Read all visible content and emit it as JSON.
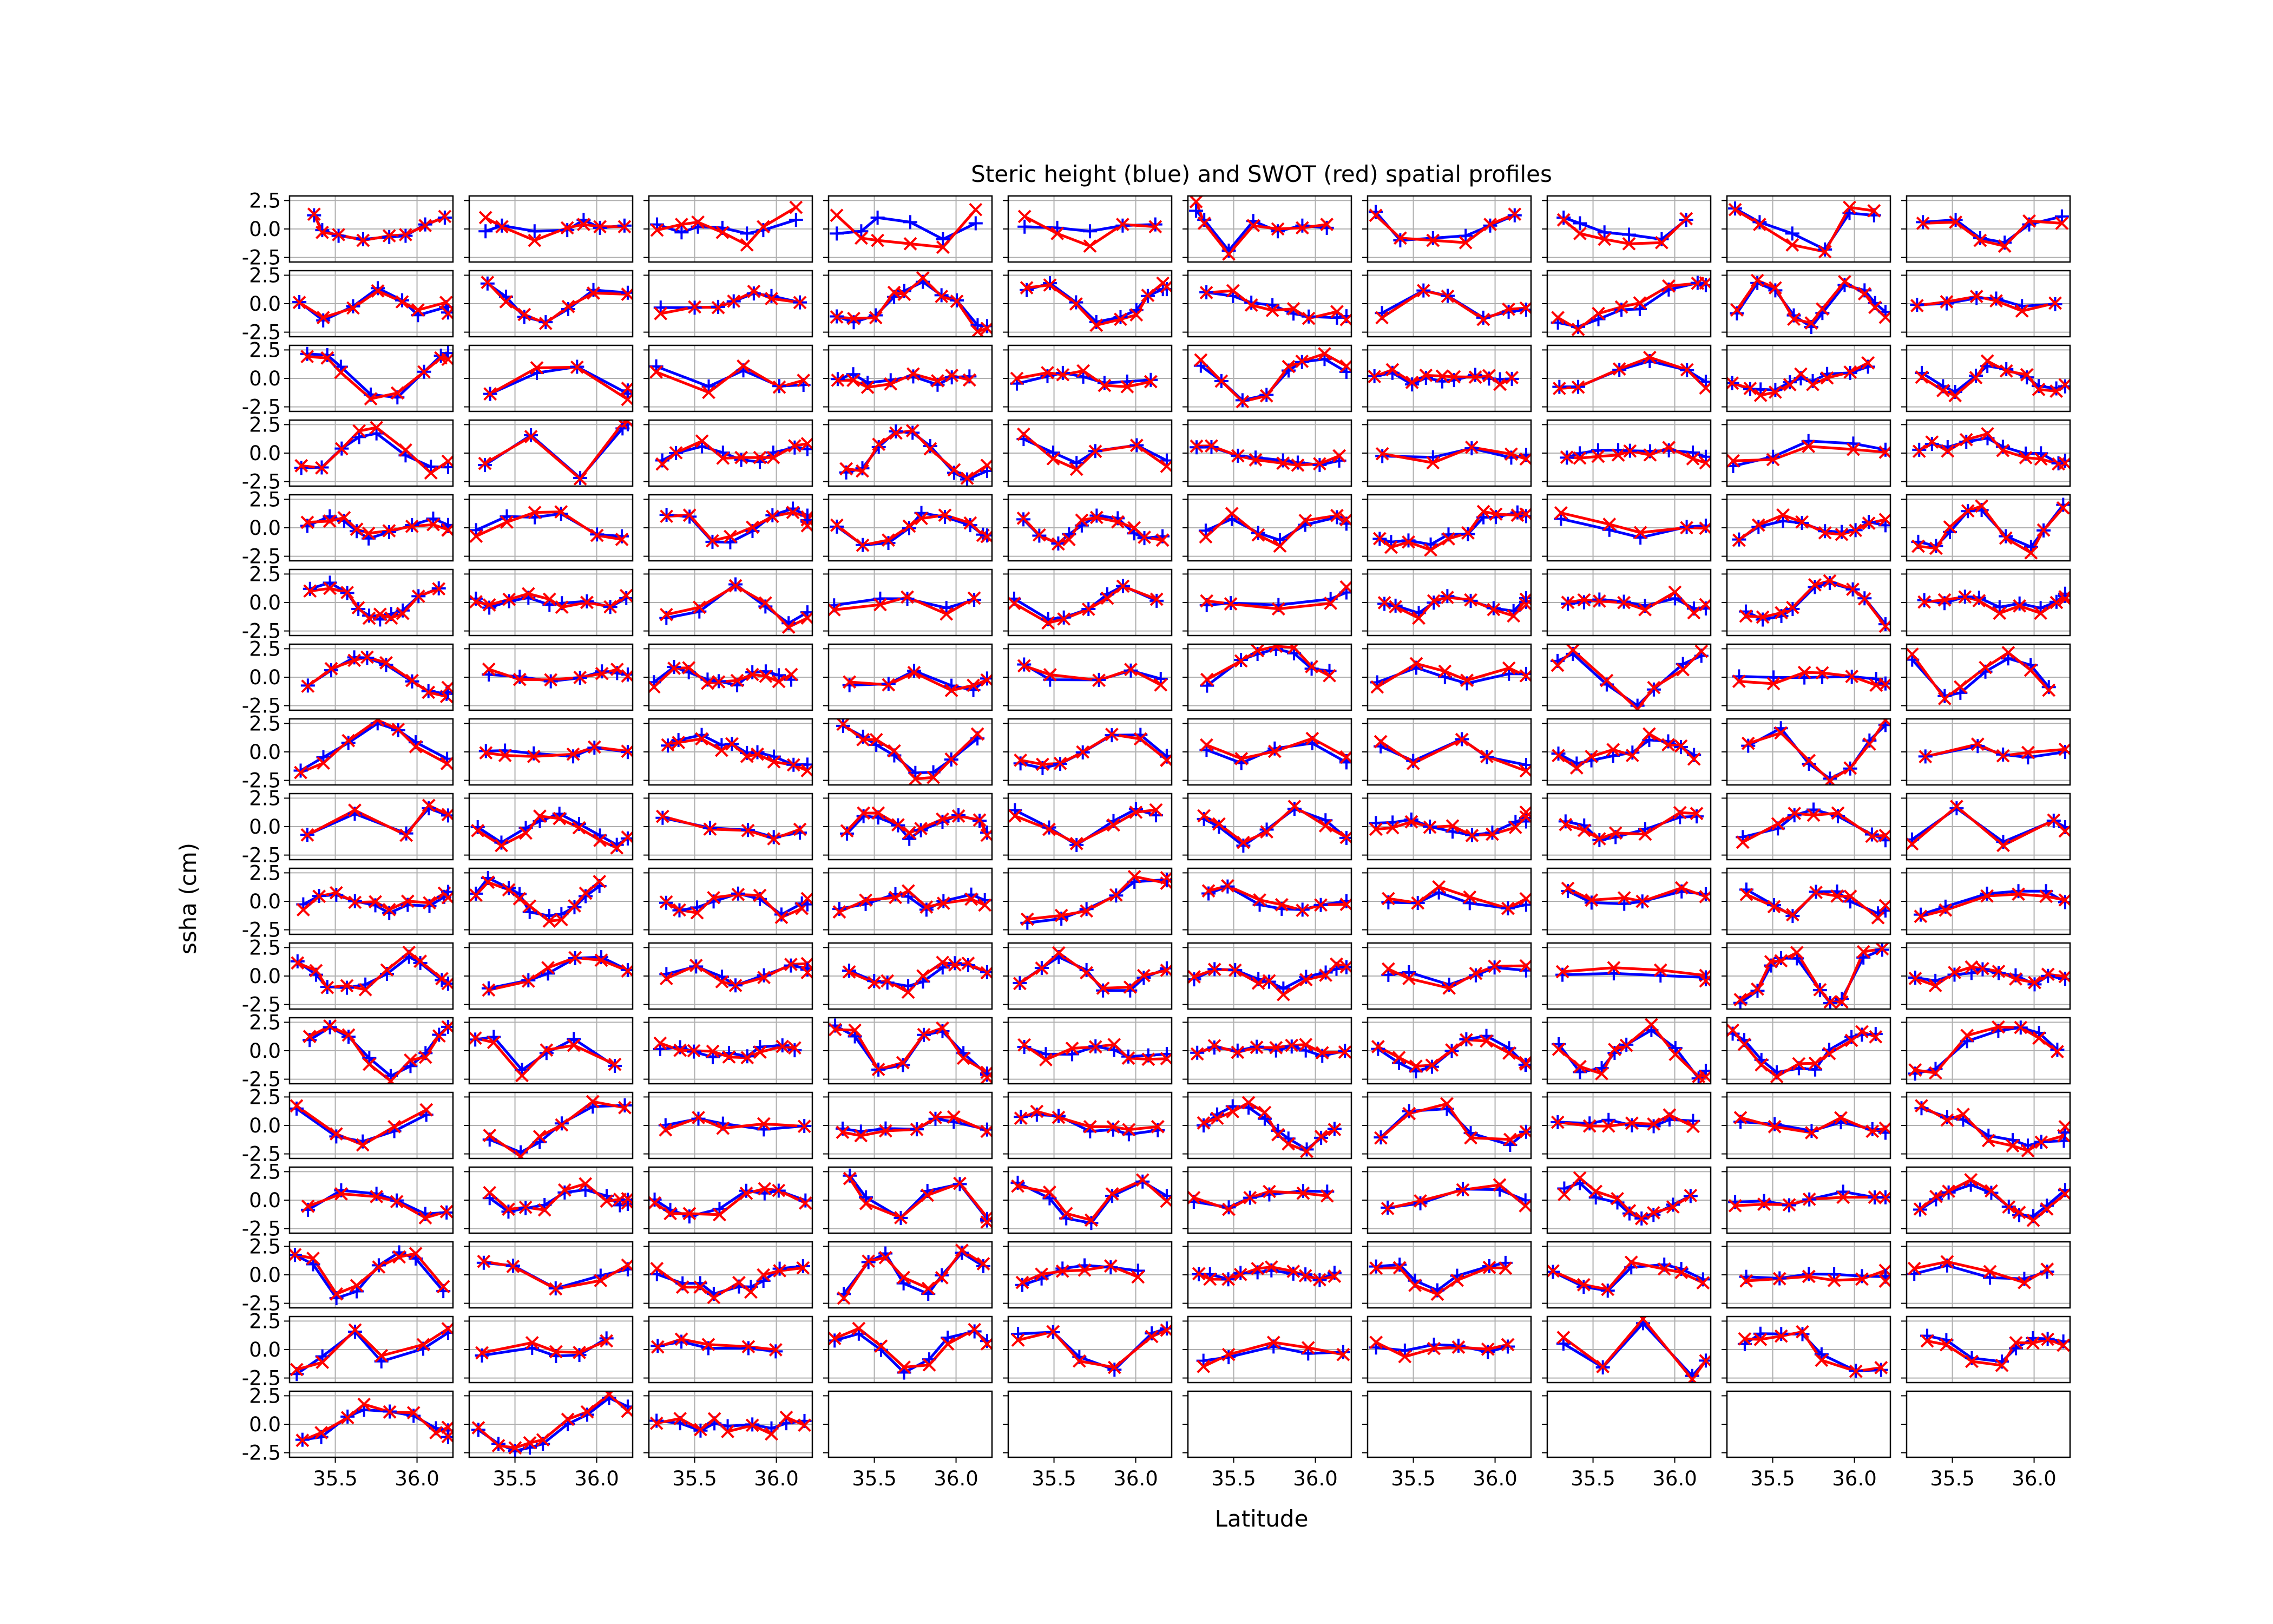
{
  "figure": {
    "title": "Steric height (blue) and SWOT (red) spatial profiles",
    "xlabel": "Latitude",
    "ylabel": "ssha (cm)"
  },
  "chart_data": {
    "type": "line",
    "title": "Steric height (blue) and SWOT (red) spatial profiles",
    "xlabel": "Latitude",
    "ylabel": "ssha (cm)",
    "grid": true,
    "layout": {
      "rows": 17,
      "cols": 10,
      "filled_panels": 163
    },
    "xlim": [
      35.22,
      36.22
    ],
    "ylim": [
      -2.9,
      2.9
    ],
    "x_ticks": [
      "35.5",
      "36.0"
    ],
    "y_ticks": [
      "2.5",
      "0.0",
      "-2.5"
    ],
    "series_styles": [
      {
        "color": "#0000ff",
        "marker": "plus-icon"
      },
      {
        "color": "#ff0000",
        "marker": "x-icon"
      }
    ],
    "panels_note": "sample panels; values estimated from small multiples",
    "panels": [
      {
        "x": [
          35.37,
          35.42,
          35.52,
          35.67,
          35.83,
          35.93,
          36.05,
          36.17
        ],
        "steric": [
          1.2,
          -0.1,
          -0.6,
          -0.9,
          -0.7,
          -0.6,
          0.4,
          1.0
        ],
        "swot": [
          1.3,
          -0.3,
          -0.5,
          -1.0,
          -0.6,
          -0.5,
          0.3,
          1.1
        ]
      },
      {
        "x": [
          35.32,
          35.42,
          35.62,
          35.82,
          35.92,
          36.02,
          36.17
        ],
        "steric": [
          -0.2,
          0.3,
          -0.2,
          -0.1,
          0.8,
          0.1,
          0.3
        ],
        "swot": [
          1.0,
          0.2,
          -1.0,
          0.1,
          0.4,
          0.2,
          0.2
        ]
      },
      {
        "x": [
          35.27,
          35.42,
          35.52,
          35.67,
          35.82,
          35.92,
          36.12
        ],
        "steric": [
          0.4,
          -0.3,
          0.2,
          0.1,
          -0.4,
          -0.1,
          0.8
        ],
        "swot": [
          -0.1,
          0.4,
          0.6,
          -0.3,
          -1.4,
          0.2,
          1.9
        ]
      },
      {
        "x": [
          35.27,
          35.42,
          35.52,
          35.72,
          35.92,
          36.12
        ],
        "steric": [
          -0.4,
          -0.2,
          1.0,
          0.6,
          -0.9,
          0.5
        ],
        "swot": [
          1.2,
          -0.8,
          -1.0,
          -1.3,
          -1.6,
          1.7
        ]
      },
      {
        "x": [
          35.32,
          35.52,
          35.72,
          35.92,
          36.12
        ],
        "steric": [
          0.2,
          0.1,
          -0.2,
          0.3,
          0.4
        ],
        "swot": [
          1.1,
          -0.4,
          -1.5,
          0.4,
          0.2
        ]
      },
      {
        "x": [
          35.27,
          35.32,
          35.47,
          35.62,
          35.77,
          35.92,
          36.07
        ],
        "steric": [
          1.6,
          0.8,
          -1.9,
          0.7,
          -0.2,
          0.3,
          0.1
        ],
        "swot": [
          2.4,
          0.5,
          -2.2,
          0.3,
          0.0,
          0.1,
          0.4
        ]
      },
      {
        "x": [
          35.27,
          35.42,
          35.62,
          35.82,
          35.97,
          36.12
        ],
        "steric": [
          1.5,
          -1.0,
          -0.8,
          -0.6,
          0.3,
          1.2
        ],
        "swot": [
          1.2,
          -0.8,
          -1.0,
          -1.2,
          0.4,
          1.3
        ]
      },
      {
        "x": [
          35.32,
          35.42,
          35.57,
          35.72,
          35.92,
          36.07
        ],
        "steric": [
          1.0,
          0.5,
          -0.3,
          -0.5,
          -0.9,
          0.8
        ],
        "swot": [
          0.8,
          -0.4,
          -0.9,
          -1.3,
          -1.2,
          0.9
        ]
      },
      {
        "x": [
          35.27,
          35.42,
          35.62,
          35.82,
          35.97,
          36.12
        ],
        "steric": [
          1.8,
          0.6,
          -0.4,
          -1.8,
          1.4,
          1.2
        ],
        "swot": [
          1.7,
          0.4,
          -1.4,
          -2.0,
          1.9,
          1.6
        ]
      },
      {
        "x": [
          35.32,
          35.52,
          35.67,
          35.82,
          35.97,
          36.17
        ],
        "steric": [
          0.6,
          0.8,
          -0.8,
          -1.2,
          0.4,
          1.1
        ],
        "swot": [
          0.5,
          0.6,
          -1.0,
          -1.5,
          0.7,
          0.5
        ]
      }
    ]
  }
}
